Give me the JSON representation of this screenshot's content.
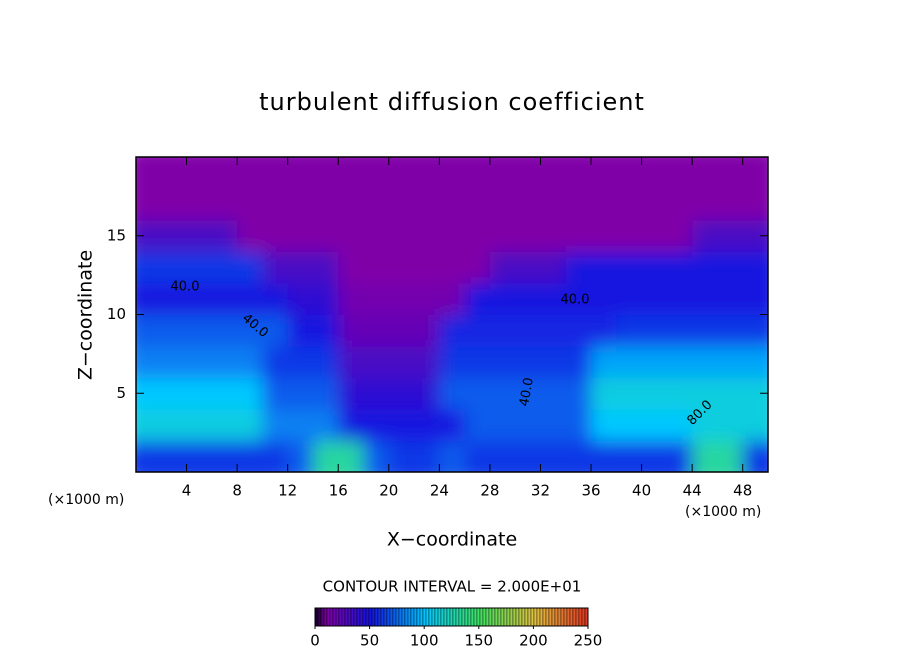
{
  "chart_data": {
    "type": "heatmap",
    "title": "turbulent diffusion coefficient",
    "x_label": "X−coordinate",
    "y_label": "Z−coordinate",
    "x_unit": "(×1000 m)",
    "y_unit": "(×1000 m)",
    "contour_note": "CONTOUR INTERVAL = 2.000E+01",
    "xlim": [
      0,
      50
    ],
    "ylim": [
      0,
      20
    ],
    "xticks": [
      4,
      8,
      12,
      16,
      20,
      24,
      28,
      32,
      36,
      40,
      44,
      48
    ],
    "yticks": [
      5,
      10,
      15
    ],
    "x": [
      1,
      3,
      5,
      7,
      9,
      11,
      13,
      15,
      17,
      19,
      21,
      23,
      25,
      27,
      29,
      31,
      33,
      35,
      37,
      39,
      41,
      43,
      45,
      47,
      49
    ],
    "y": [
      1,
      3,
      5,
      7,
      9,
      11,
      13,
      15,
      17,
      19
    ],
    "z": [
      [
        60,
        60,
        60,
        60,
        60,
        60,
        70,
        130,
        130,
        70,
        60,
        60,
        70,
        60,
        60,
        60,
        60,
        60,
        60,
        60,
        60,
        60,
        130,
        130,
        60
      ],
      [
        110,
        110,
        110,
        110,
        110,
        80,
        80,
        80,
        50,
        50,
        50,
        50,
        50,
        70,
        70,
        70,
        70,
        70,
        100,
        100,
        100,
        100,
        110,
        110,
        110
      ],
      [
        100,
        100,
        100,
        100,
        100,
        70,
        70,
        70,
        40,
        40,
        40,
        40,
        70,
        70,
        70,
        70,
        70,
        70,
        110,
        110,
        110,
        110,
        110,
        110,
        110
      ],
      [
        80,
        80,
        80,
        80,
        80,
        60,
        60,
        60,
        30,
        30,
        30,
        30,
        60,
        60,
        60,
        60,
        60,
        60,
        90,
        90,
        90,
        90,
        90,
        90,
        90
      ],
      [
        70,
        70,
        70,
        70,
        70,
        70,
        50,
        50,
        20,
        20,
        20,
        20,
        55,
        55,
        55,
        55,
        55,
        55,
        55,
        60,
        60,
        60,
        60,
        60,
        60
      ],
      [
        50,
        50,
        50,
        50,
        50,
        50,
        40,
        40,
        15,
        15,
        15,
        15,
        15,
        50,
        50,
        50,
        50,
        50,
        50,
        50,
        50,
        50,
        50,
        50,
        50
      ],
      [
        60,
        60,
        60,
        60,
        60,
        30,
        30,
        30,
        10,
        10,
        10,
        10,
        10,
        10,
        30,
        30,
        30,
        50,
        50,
        50,
        50,
        50,
        50,
        50,
        50
      ],
      [
        30,
        30,
        30,
        30,
        10,
        10,
        10,
        10,
        10,
        10,
        10,
        10,
        10,
        10,
        10,
        10,
        10,
        10,
        10,
        10,
        10,
        10,
        30,
        30,
        30
      ],
      [
        10,
        10,
        10,
        10,
        10,
        10,
        10,
        10,
        10,
        10,
        10,
        10,
        10,
        10,
        10,
        10,
        10,
        10,
        10,
        10,
        10,
        10,
        10,
        10,
        10
      ],
      [
        10,
        10,
        10,
        10,
        10,
        10,
        10,
        10,
        10,
        10,
        10,
        10,
        10,
        10,
        10,
        10,
        10,
        10,
        10,
        10,
        10,
        10,
        10,
        10,
        10
      ]
    ],
    "contour_labels": [
      {
        "value": 40,
        "label": "40.0"
      },
      {
        "value": 40,
        "label": "40.0"
      },
      {
        "value": 40,
        "label": "40.0"
      },
      {
        "value": 40,
        "label": "40.0"
      },
      {
        "value": 80,
        "label": "80.0"
      }
    ],
    "colormap": [
      {
        "value": 0,
        "color": "#1a0030"
      },
      {
        "value": 10,
        "color": "#8000a8"
      },
      {
        "value": 50,
        "color": "#1414e0"
      },
      {
        "value": 100,
        "color": "#00c8ff"
      },
      {
        "value": 150,
        "color": "#40e060"
      },
      {
        "value": 200,
        "color": "#e0c040"
      },
      {
        "value": 250,
        "color": "#e03020"
      }
    ],
    "colorbar_lim": [
      0,
      250
    ],
    "colorbar_ticks": [
      0,
      50,
      100,
      150,
      200,
      250
    ]
  }
}
